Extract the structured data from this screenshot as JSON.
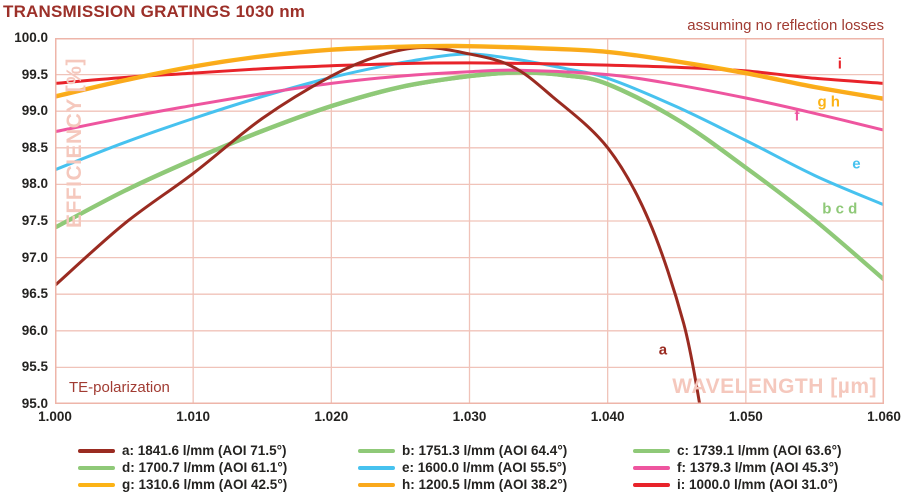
{
  "chart_data": {
    "type": "line",
    "title": "TRANSMISSION GRATINGS 1030 nm",
    "subtitle": "assuming no reflection losses",
    "xlabel": "WAVELENGTH [µm]",
    "ylabel": "EFFICIENCY [%]",
    "note": "TE-polarization",
    "xlim": [
      1.0,
      1.06
    ],
    "ylim": [
      95.0,
      100.0
    ],
    "xticks": [
      "1.000",
      "1.010",
      "1.020",
      "1.030",
      "1.040",
      "1.050",
      "1.060"
    ],
    "yticks": [
      "100.0",
      "99.5",
      "99.0",
      "98.5",
      "98.0",
      "97.5",
      "97.0",
      "96.5",
      "96.0",
      "95.5",
      "95.0"
    ],
    "grid_on": true,
    "grid_color": "#f0c3b9",
    "border_color": "#eeb5a9",
    "watermark_color": "#f5c8bd",
    "title_color": "#9c3029",
    "annotation_color": "#a13b32",
    "legend_position": "bottom",
    "draw_order": [
      "b",
      "c",
      "d",
      "e",
      "f",
      "i",
      "a",
      "g",
      "h"
    ],
    "series": [
      {
        "id": "a",
        "label": "a: 1841.6 l/mm (AOI 71.5°)",
        "color": "#9a2b21",
        "points": [
          [
            1.0,
            96.62
          ],
          [
            1.005,
            97.46
          ],
          [
            1.01,
            98.15
          ],
          [
            1.015,
            98.9
          ],
          [
            1.02,
            99.48
          ],
          [
            1.0235,
            99.76
          ],
          [
            1.0265,
            99.87
          ],
          [
            1.0295,
            99.8
          ],
          [
            1.033,
            99.62
          ],
          [
            1.036,
            99.2
          ],
          [
            1.04,
            98.5
          ],
          [
            1.043,
            97.5
          ],
          [
            1.0455,
            96.1
          ],
          [
            1.0468,
            94.85
          ]
        ]
      },
      {
        "id": "b",
        "label": "b: 1751.3 l/mm (AOI 64.4°)",
        "color": "#8fc978",
        "points": [
          [
            1.0,
            97.4
          ],
          [
            1.005,
            97.9
          ],
          [
            1.01,
            98.33
          ],
          [
            1.015,
            98.72
          ],
          [
            1.02,
            99.06
          ],
          [
            1.025,
            99.32
          ],
          [
            1.03,
            99.47
          ],
          [
            1.0335,
            99.52
          ],
          [
            1.037,
            99.48
          ],
          [
            1.04,
            99.36
          ],
          [
            1.045,
            98.88
          ],
          [
            1.05,
            98.22
          ],
          [
            1.055,
            97.5
          ],
          [
            1.06,
            96.69
          ]
        ]
      },
      {
        "id": "c",
        "label": "c: 1739.1 l/mm (AOI 63.6°)",
        "color": "#8fc978",
        "points": [
          [
            1.0,
            97.4
          ],
          [
            1.005,
            97.9
          ],
          [
            1.01,
            98.33
          ],
          [
            1.015,
            98.72
          ],
          [
            1.02,
            99.06
          ],
          [
            1.025,
            99.32
          ],
          [
            1.03,
            99.47
          ],
          [
            1.0335,
            99.52
          ],
          [
            1.037,
            99.48
          ],
          [
            1.04,
            99.36
          ],
          [
            1.045,
            98.88
          ],
          [
            1.05,
            98.22
          ],
          [
            1.055,
            97.5
          ],
          [
            1.06,
            96.69
          ]
        ]
      },
      {
        "id": "d",
        "label": "d: 1700.7 l/mm (AOI 61.1°)",
        "color": "#8fc978",
        "points": [
          [
            1.0,
            97.42
          ],
          [
            1.005,
            97.92
          ],
          [
            1.01,
            98.35
          ],
          [
            1.015,
            98.74
          ],
          [
            1.02,
            99.08
          ],
          [
            1.025,
            99.34
          ],
          [
            1.03,
            99.49
          ],
          [
            1.0335,
            99.54
          ],
          [
            1.037,
            99.5
          ],
          [
            1.04,
            99.38
          ],
          [
            1.045,
            98.9
          ],
          [
            1.05,
            98.24
          ],
          [
            1.055,
            97.52
          ],
          [
            1.06,
            96.71
          ]
        ]
      },
      {
        "id": "e",
        "label": "e: 1600.0 l/mm (AOI 55.5°)",
        "color": "#47c2ef",
        "points": [
          [
            1.0,
            98.2
          ],
          [
            1.005,
            98.57
          ],
          [
            1.01,
            98.9
          ],
          [
            1.015,
            99.2
          ],
          [
            1.02,
            99.46
          ],
          [
            1.025,
            99.66
          ],
          [
            1.0295,
            99.78
          ],
          [
            1.033,
            99.72
          ],
          [
            1.037,
            99.58
          ],
          [
            1.04,
            99.45
          ],
          [
            1.045,
            99.06
          ],
          [
            1.05,
            98.6
          ],
          [
            1.055,
            98.12
          ],
          [
            1.06,
            97.72
          ]
        ]
      },
      {
        "id": "f",
        "label": "f: 1379.3 l/mm (AOI 45.3°)",
        "color": "#ee559f",
        "points": [
          [
            1.0,
            98.72
          ],
          [
            1.005,
            98.91
          ],
          [
            1.01,
            99.08
          ],
          [
            1.015,
            99.24
          ],
          [
            1.02,
            99.38
          ],
          [
            1.025,
            99.48
          ],
          [
            1.03,
            99.54
          ],
          [
            1.0335,
            99.56
          ],
          [
            1.04,
            99.5
          ],
          [
            1.045,
            99.36
          ],
          [
            1.05,
            99.18
          ],
          [
            1.055,
            98.97
          ],
          [
            1.06,
            98.74
          ]
        ]
      },
      {
        "id": "g",
        "label": "g: 1310.6 l/mm (AOI 42.5°)",
        "color": "#fcb316",
        "points": [
          [
            1.0,
            99.21
          ],
          [
            1.005,
            99.43
          ],
          [
            1.01,
            99.62
          ],
          [
            1.015,
            99.76
          ],
          [
            1.02,
            99.85
          ],
          [
            1.025,
            99.89
          ],
          [
            1.029,
            99.9
          ],
          [
            1.035,
            99.87
          ],
          [
            1.04,
            99.82
          ],
          [
            1.045,
            99.69
          ],
          [
            1.05,
            99.53
          ],
          [
            1.055,
            99.34
          ],
          [
            1.06,
            99.18
          ]
        ]
      },
      {
        "id": "h",
        "label": "h: 1200.5 l/mm (AOI 38.2°)",
        "color": "#faa91c",
        "points": [
          [
            1.0,
            99.19
          ],
          [
            1.005,
            99.41
          ],
          [
            1.01,
            99.6
          ],
          [
            1.015,
            99.74
          ],
          [
            1.02,
            99.83
          ],
          [
            1.025,
            99.87
          ],
          [
            1.029,
            99.88
          ],
          [
            1.035,
            99.85
          ],
          [
            1.04,
            99.8
          ],
          [
            1.045,
            99.67
          ],
          [
            1.05,
            99.51
          ],
          [
            1.055,
            99.32
          ],
          [
            1.06,
            99.16
          ]
        ]
      },
      {
        "id": "i",
        "label": "i: 1000.0 l/mm (AOI 31.0°)",
        "color": "#e8232a",
        "points": [
          [
            1.0,
            99.38
          ],
          [
            1.005,
            99.46
          ],
          [
            1.01,
            99.52
          ],
          [
            1.015,
            99.58
          ],
          [
            1.02,
            99.62
          ],
          [
            1.025,
            99.65
          ],
          [
            1.03,
            99.66
          ],
          [
            1.035,
            99.65
          ],
          [
            1.04,
            99.63
          ],
          [
            1.045,
            99.6
          ],
          [
            1.05,
            99.55
          ],
          [
            1.055,
            99.45
          ],
          [
            1.06,
            99.38
          ]
        ]
      }
    ],
    "curve_labels": [
      {
        "text": "a",
        "color": "#9a2b21",
        "wl": 1.044,
        "eff": 95.74
      },
      {
        "text": "b c d",
        "color": "#8fc978",
        "wl": 1.0568,
        "eff": 97.66
      },
      {
        "text": "e",
        "color": "#47c2ef",
        "wl": 1.058,
        "eff": 98.28
      },
      {
        "text": "f",
        "color": "#ee559f",
        "wl": 1.0537,
        "eff": 98.94
      },
      {
        "text": "g h",
        "color": "#fcb316",
        "wl": 1.056,
        "eff": 99.13
      },
      {
        "text": "i",
        "color": "#e8232a",
        "wl": 1.0568,
        "eff": 99.65
      }
    ]
  }
}
